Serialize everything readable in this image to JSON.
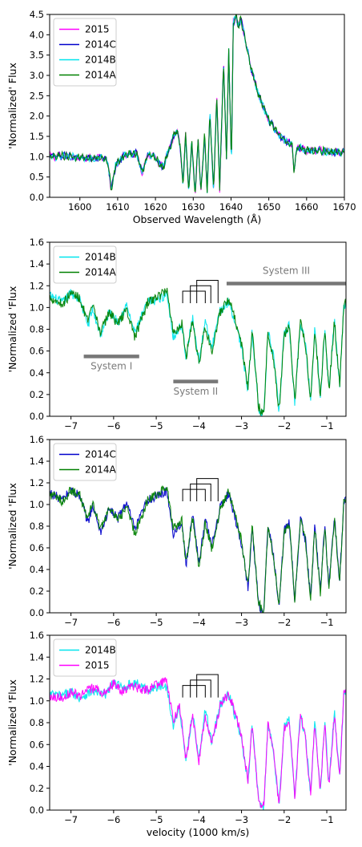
{
  "chart_data": [
    {
      "type": "line",
      "xlabel": "Observed Wavelength (Å)",
      "ylabel": "'Normalized' Flux",
      "xlim": [
        1592,
        1670
      ],
      "ylim": [
        0,
        4.5
      ],
      "xticks": [
        1600,
        1610,
        1620,
        1630,
        1640,
        1650,
        1660,
        1670
      ],
      "yticks": [
        0.0,
        0.5,
        1.0,
        1.5,
        2.0,
        2.5,
        3.0,
        3.5,
        4.0,
        4.5
      ],
      "grid": false,
      "legend": "top-left",
      "series": [
        {
          "name": "2015",
          "color": "#ff00ff"
        },
        {
          "name": "2014C",
          "color": "#0000cc"
        },
        {
          "name": "2014B",
          "color": "#00e5ee"
        },
        {
          "name": "2014A",
          "color": "#008000"
        }
      ],
      "profile": {
        "x": [
          1592,
          1596,
          1600,
          1604,
          1606,
          1607.5,
          1608.3,
          1609.5,
          1612,
          1615,
          1616.5,
          1618,
          1620,
          1621.3,
          1622.3,
          1623,
          1624,
          1625,
          1626,
          1626.5,
          1627.3,
          1628,
          1628.8,
          1629.6,
          1630.5,
          1631.3,
          1632,
          1633,
          1633.7,
          1634.4,
          1635.4,
          1636.2,
          1637,
          1638,
          1638.8,
          1639.4,
          1640.1,
          1640.6,
          1641.3,
          1642,
          1642.6,
          1643.5,
          1645,
          1647,
          1650,
          1653,
          1655,
          1656.2,
          1656.7,
          1657.5,
          1660,
          1664,
          1667,
          1670
        ],
        "y": [
          1.0,
          1.02,
          0.98,
          0.95,
          1.0,
          0.85,
          0.15,
          0.82,
          1.05,
          1.08,
          0.62,
          1.05,
          0.98,
          0.78,
          0.75,
          1.05,
          1.22,
          1.6,
          1.55,
          1.3,
          0.3,
          1.55,
          0.12,
          1.4,
          0.05,
          1.45,
          0.08,
          1.55,
          0.12,
          2.1,
          0.15,
          2.5,
          0.2,
          3.3,
          1.0,
          3.6,
          0.8,
          4.3,
          4.45,
          4.2,
          4.4,
          4.0,
          3.3,
          2.6,
          1.9,
          1.5,
          1.35,
          1.3,
          0.6,
          1.25,
          1.15,
          1.15,
          1.1,
          1.1
        ]
      }
    },
    {
      "type": "line",
      "xlabel": "",
      "ylabel": "'Normalized 'Flux",
      "xlim": [
        -7.5,
        -0.55
      ],
      "ylim": [
        0,
        1.6
      ],
      "xticks": [
        -7,
        -6,
        -5,
        -4,
        -3,
        -2,
        -1
      ],
      "yticks": [
        0.0,
        0.2,
        0.4,
        0.6,
        0.8,
        1.0,
        1.2,
        1.4,
        1.6
      ],
      "grid": false,
      "legend": "top-left",
      "series": [
        {
          "name": "2014B",
          "color": "#00e5ee"
        },
        {
          "name": "2014A",
          "color": "#008000"
        }
      ],
      "annotations": [
        {
          "text": "System I",
          "x0": -6.7,
          "x1": -5.4,
          "bar_y": 0.55,
          "label_y": 0.43
        },
        {
          "text": "System II",
          "x0": -4.6,
          "x1": -3.55,
          "bar_y": 0.32,
          "label_y": 0.2
        },
        {
          "text": "System III",
          "x0": -3.35,
          "x1": -0.55,
          "bar_y": 1.22,
          "label_y": 1.31
        }
      ],
      "brackets": [
        [
          -4.38,
          -3.85
        ],
        [
          -4.2,
          -3.72
        ],
        [
          -4.05,
          -3.55
        ]
      ],
      "profile": {
        "x": [
          -7.5,
          -7.2,
          -7.0,
          -6.8,
          -6.6,
          -6.5,
          -6.3,
          -6.1,
          -5.9,
          -5.7,
          -5.5,
          -5.2,
          -4.9,
          -4.75,
          -4.6,
          -4.4,
          -4.3,
          -4.15,
          -4.0,
          -3.85,
          -3.7,
          -3.5,
          -3.3,
          -3.1,
          -3.0,
          -2.85,
          -2.75,
          -2.6,
          -2.48,
          -2.38,
          -2.25,
          -2.12,
          -2.0,
          -1.88,
          -1.75,
          -1.62,
          -1.5,
          -1.38,
          -1.28,
          -1.15,
          -1.05,
          -0.95,
          -0.82,
          -0.7,
          -0.6
        ],
        "y": [
          1.1,
          1.05,
          1.15,
          1.1,
          0.85,
          1.0,
          0.75,
          0.95,
          0.85,
          1.0,
          0.75,
          1.05,
          1.1,
          1.15,
          0.75,
          0.85,
          0.55,
          0.9,
          0.5,
          0.85,
          0.6,
          0.95,
          1.05,
          0.8,
          0.65,
          0.25,
          0.8,
          0.1,
          0.02,
          0.8,
          0.55,
          0.05,
          0.75,
          0.82,
          0.1,
          0.85,
          0.65,
          0.12,
          0.8,
          0.18,
          0.82,
          0.25,
          0.9,
          0.3,
          1.05
        ]
      }
    },
    {
      "type": "line",
      "xlabel": "",
      "ylabel": "'Normalized 'Flux",
      "xlim": [
        -7.5,
        -0.55
      ],
      "ylim": [
        0,
        1.6
      ],
      "xticks": [
        -7,
        -6,
        -5,
        -4,
        -3,
        -2,
        -1
      ],
      "yticks": [
        0.0,
        0.2,
        0.4,
        0.6,
        0.8,
        1.0,
        1.2,
        1.4,
        1.6
      ],
      "grid": false,
      "legend": "top-left",
      "series": [
        {
          "name": "2014C",
          "color": "#0000cc"
        },
        {
          "name": "2014A",
          "color": "#008000"
        }
      ],
      "brackets": [
        [
          -4.38,
          -3.85
        ],
        [
          -4.2,
          -3.72
        ],
        [
          -4.05,
          -3.55
        ]
      ],
      "profile": {
        "x": [
          -7.5,
          -7.2,
          -7.0,
          -6.8,
          -6.6,
          -6.5,
          -6.3,
          -6.1,
          -5.9,
          -5.7,
          -5.5,
          -5.2,
          -4.9,
          -4.75,
          -4.6,
          -4.4,
          -4.3,
          -4.15,
          -4.0,
          -3.85,
          -3.7,
          -3.5,
          -3.3,
          -3.1,
          -3.0,
          -2.85,
          -2.75,
          -2.6,
          -2.48,
          -2.38,
          -2.25,
          -2.12,
          -2.0,
          -1.88,
          -1.75,
          -1.62,
          -1.5,
          -1.38,
          -1.28,
          -1.15,
          -1.05,
          -0.95,
          -0.82,
          -0.7,
          -0.6
        ],
        "y": [
          1.1,
          1.05,
          1.15,
          1.1,
          0.85,
          1.0,
          0.75,
          0.95,
          0.85,
          1.0,
          0.75,
          1.05,
          1.1,
          1.15,
          0.75,
          0.85,
          0.45,
          0.9,
          0.45,
          0.85,
          0.6,
          0.95,
          1.1,
          0.8,
          0.65,
          0.25,
          0.8,
          0.1,
          0.02,
          0.8,
          0.55,
          0.05,
          0.75,
          0.82,
          0.1,
          0.85,
          0.65,
          0.12,
          0.8,
          0.18,
          0.82,
          0.25,
          0.9,
          0.3,
          1.05
        ]
      }
    },
    {
      "type": "line",
      "xlabel": "velocity (1000 km/s)",
      "ylabel": "'Normalized 'Flux",
      "xlim": [
        -7.5,
        -0.55
      ],
      "ylim": [
        0,
        1.6
      ],
      "xticks": [
        -7,
        -6,
        -5,
        -4,
        -3,
        -2,
        -1
      ],
      "yticks": [
        0.0,
        0.2,
        0.4,
        0.6,
        0.8,
        1.0,
        1.2,
        1.4,
        1.6
      ],
      "grid": false,
      "legend": "top-left",
      "series": [
        {
          "name": "2014B",
          "color": "#00e5ee"
        },
        {
          "name": "2015",
          "color": "#ff00ff"
        }
      ],
      "brackets": [
        [
          -4.38,
          -3.85
        ],
        [
          -4.2,
          -3.72
        ],
        [
          -4.05,
          -3.55
        ]
      ],
      "profile": {
        "x": [
          -7.5,
          -7.2,
          -7.0,
          -6.8,
          -6.5,
          -6.2,
          -6.0,
          -5.8,
          -5.5,
          -5.2,
          -4.9,
          -4.75,
          -4.6,
          -4.45,
          -4.3,
          -4.15,
          -4.0,
          -3.85,
          -3.7,
          -3.5,
          -3.3,
          -3.1,
          -3.0,
          -2.85,
          -2.75,
          -2.6,
          -2.48,
          -2.38,
          -2.25,
          -2.12,
          -2.0,
          -1.88,
          -1.75,
          -1.62,
          -1.5,
          -1.38,
          -1.28,
          -1.15,
          -1.05,
          -0.95,
          -0.82,
          -0.7,
          -0.6
        ],
        "y": [
          1.05,
          1.05,
          1.1,
          1.05,
          1.1,
          1.05,
          1.15,
          1.1,
          1.15,
          1.1,
          1.15,
          1.15,
          0.8,
          0.95,
          0.45,
          0.9,
          0.45,
          0.9,
          0.6,
          0.95,
          1.05,
          0.8,
          0.65,
          0.25,
          0.8,
          0.1,
          0.05,
          0.8,
          0.55,
          0.05,
          0.75,
          0.82,
          0.1,
          0.85,
          0.65,
          0.12,
          0.8,
          0.18,
          0.82,
          0.25,
          0.9,
          0.3,
          1.1
        ]
      }
    }
  ]
}
